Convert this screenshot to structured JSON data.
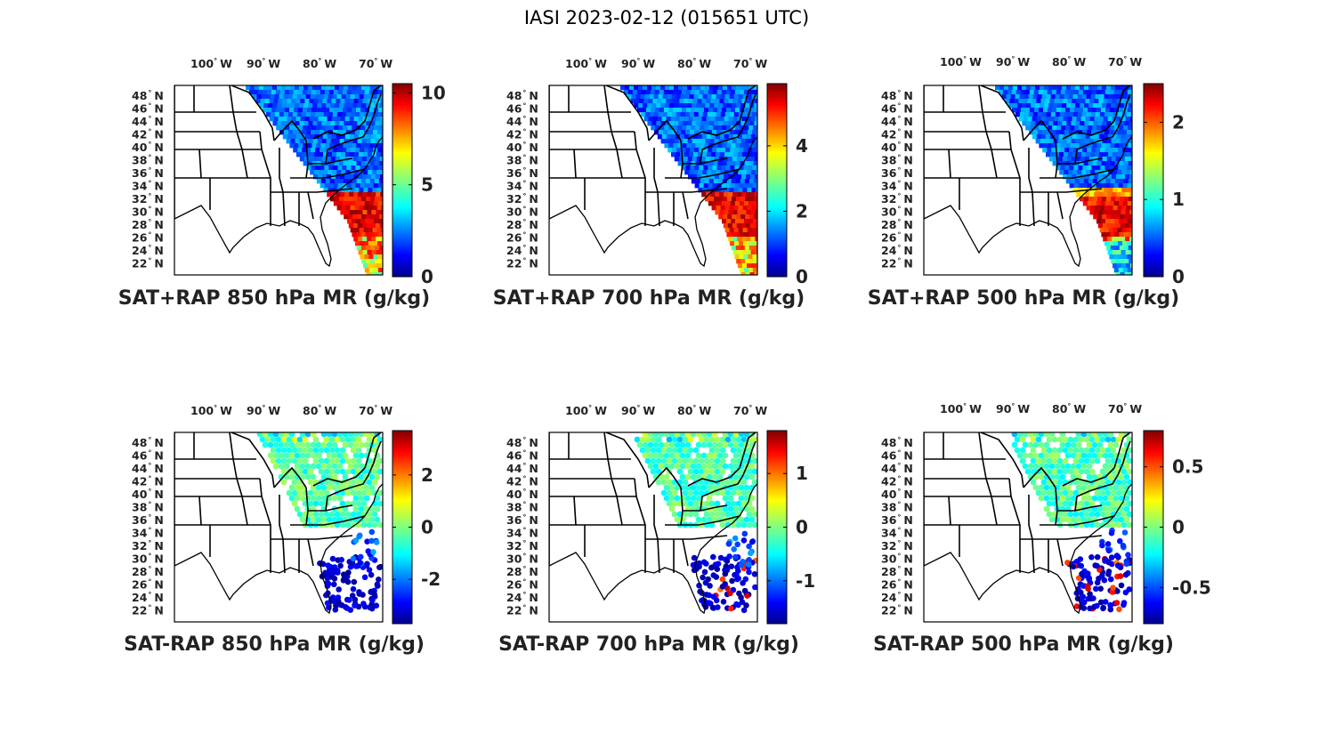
{
  "figure": {
    "title": "IASI 2023-02-12 (015651 UTC)",
    "colormap": "jet",
    "lon_labels": [
      "100",
      "90",
      "80",
      "70"
    ],
    "lon_hemisphere": "W",
    "lat_labels": [
      "48",
      "46",
      "44",
      "42",
      "40",
      "38",
      "36",
      "34",
      "32",
      "30",
      "28",
      "26",
      "24",
      "22"
    ],
    "lat_hemisphere": "N",
    "degree_symbol": "°"
  },
  "panels": [
    {
      "id": "p1",
      "title": "SAT+RAP 850 hPa MR (g/kg)",
      "kind": "total",
      "vmin": 0,
      "vmax": 10.5,
      "ticks": [
        {
          "v": 0,
          "label": "0"
        },
        {
          "v": 5,
          "label": "5"
        },
        {
          "v": 10,
          "label": "10"
        }
      ]
    },
    {
      "id": "p2",
      "title": "SAT+RAP 700 hPa MR (g/kg)",
      "kind": "total",
      "vmin": 0,
      "vmax": 5.9,
      "ticks": [
        {
          "v": 0,
          "label": "0"
        },
        {
          "v": 2,
          "label": "2"
        },
        {
          "v": 4,
          "label": "4"
        }
      ]
    },
    {
      "id": "p3",
      "title": "SAT+RAP 500 hPa MR (g/kg)",
      "kind": "total",
      "vmin": 0,
      "vmax": 2.5,
      "ticks": [
        {
          "v": 0,
          "label": "0"
        },
        {
          "v": 1,
          "label": "1"
        },
        {
          "v": 2,
          "label": "2"
        }
      ]
    },
    {
      "id": "p4",
      "title": "SAT-RAP 850 hPa MR (g/kg)",
      "kind": "diff",
      "vmin": -3.7,
      "vmax": 3.7,
      "ticks": [
        {
          "v": -2,
          "label": "-2"
        },
        {
          "v": 0,
          "label": "0"
        },
        {
          "v": 2,
          "label": "2"
        }
      ]
    },
    {
      "id": "p5",
      "title": "SAT-RAP 700 hPa MR (g/kg)",
      "kind": "diff",
      "vmin": -1.8,
      "vmax": 1.8,
      "ticks": [
        {
          "v": -1,
          "label": "-1"
        },
        {
          "v": 0,
          "label": "0"
        },
        {
          "v": 1,
          "label": "1"
        }
      ]
    },
    {
      "id": "p6",
      "title": "SAT-RAP 500 hPa MR (g/kg)",
      "kind": "diff",
      "vmin": -0.8,
      "vmax": 0.8,
      "ticks": [
        {
          "v": -0.5,
          "label": "-0.5"
        },
        {
          "v": 0,
          "label": "0"
        },
        {
          "v": 0.5,
          "label": "0.5"
        }
      ]
    }
  ]
}
